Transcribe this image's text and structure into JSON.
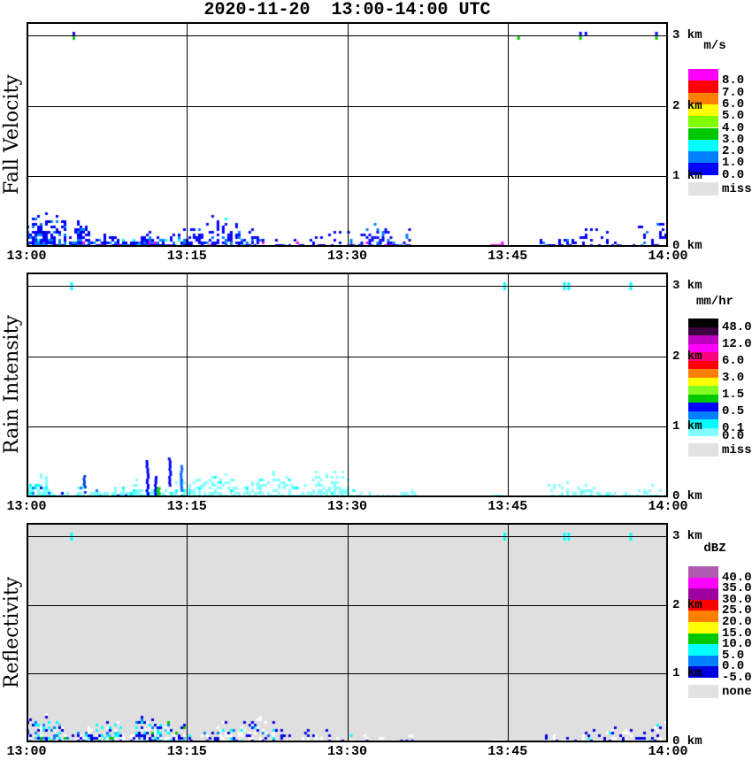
{
  "title": "2020-11-20  13:00-14:00 UTC",
  "axes": {
    "x_ticks": [
      "13:00",
      "13:15",
      "13:30",
      "13:45",
      "14:00"
    ],
    "y_ticks": [
      "3 km",
      "2 km",
      "1 km",
      "0 km"
    ]
  },
  "chart_data": [
    {
      "type": "heatmap",
      "ylabel": "Fall Velocity",
      "unit": "m/s",
      "background": "#FFFFFF",
      "time_axis": {
        "start": "13:00",
        "end": "14:00",
        "ticks": [
          "13:00",
          "13:15",
          "13:30",
          "13:45",
          "14:00"
        ]
      },
      "height_axis": {
        "ticks": [
          "3 km",
          "2 km",
          "1 km",
          "0 km"
        ],
        "range_km": [
          0,
          3.2
        ],
        "gridlines_km": [
          1,
          2,
          3
        ]
      },
      "legend": {
        "header": "m/s",
        "blocks": [
          {
            "color": "#FF00FF",
            "label": "8.0"
          },
          {
            "color": "#FF0000",
            "label": "7.0"
          },
          {
            "color": "#FF8000",
            "label": "6.0"
          },
          {
            "color": "#FFFF00",
            "label": "5.0"
          },
          {
            "color": "#80FF00",
            "label": "4.0"
          },
          {
            "color": "#00C800",
            "label": "3.0"
          },
          {
            "color": "#00FFFF",
            "label": "2.0"
          },
          {
            "color": "#0080FF",
            "label": "1.0"
          },
          {
            "color": "#0000FF",
            "label": "0.0"
          }
        ],
        "no_data": {
          "color": "#E2E2E2",
          "label": "miss"
        }
      },
      "echo_regions": [
        {
          "t": [
            0,
            15.3
          ],
          "h_top": 0.7,
          "density": 0.8,
          "colors": [
            [
              "#0000FF",
              0.58
            ],
            [
              "#0080FF",
              0.3
            ],
            [
              "#00FFFF",
              0.05
            ],
            [
              "#FF00FF",
              0.04
            ],
            [
              "#000090",
              0.03
            ]
          ]
        },
        {
          "t": [
            15.3,
            23.0
          ],
          "h_top": 0.45,
          "density": 0.6,
          "colors": [
            [
              "#0000FF",
              0.74
            ],
            [
              "#0080FF",
              0.18
            ],
            [
              "#FF00FF",
              0.05
            ],
            [
              "#00FFFF",
              0.03
            ]
          ]
        },
        {
          "t": [
            23.0,
            29.5
          ],
          "h_top": 0.28,
          "density": 0.3,
          "colors": [
            [
              "#0000FF",
              0.82
            ],
            [
              "#0080FF",
              0.13
            ],
            [
              "#FF00FF",
              0.05
            ]
          ]
        },
        {
          "t": [
            30.0,
            35.8
          ],
          "h_top": 0.5,
          "density": 0.52,
          "colors": [
            [
              "#0000FF",
              0.68
            ],
            [
              "#0080FF",
              0.22
            ],
            [
              "#FF00FF",
              0.1
            ]
          ]
        },
        {
          "t": [
            43.4,
            44.6
          ],
          "h_top": 0.06,
          "density": 0.95,
          "colors": [
            [
              "#FF00FF",
              1.0
            ]
          ]
        },
        {
          "t": [
            48.0,
            60.0
          ],
          "h_top": 0.48,
          "density": 0.36,
          "colors": [
            [
              "#0000FF",
              0.76
            ],
            [
              "#0080FF",
              0.14
            ],
            [
              "#FF00FF",
              0.1
            ]
          ]
        }
      ],
      "surface_only_colors": [
        "#FF00FF"
      ],
      "streaks": [],
      "ceiling_specks": [
        {
          "t": 4.3,
          "above": "#0000FF",
          "below": "#00C800"
        },
        {
          "t": 45.9,
          "below": "#00C800"
        },
        {
          "t": 51.7,
          "above": "#0000FF",
          "below": "#00C800"
        },
        {
          "t": 52.2,
          "above": "#0000FF"
        },
        {
          "t": 58.8,
          "above": "#0000FF",
          "below": "#00C800"
        }
      ]
    },
    {
      "type": "heatmap",
      "ylabel": "Rain Intensity",
      "unit": "mm/hr",
      "background": "#FFFFFF",
      "time_axis": {
        "start": "13:00",
        "end": "14:00",
        "ticks": [
          "13:00",
          "13:15",
          "13:30",
          "13:45",
          "14:00"
        ]
      },
      "height_axis": {
        "ticks": [
          "3 km",
          "2 km",
          "1 km",
          "0 km"
        ],
        "range_km": [
          0,
          3.2
        ],
        "gridlines_km": [
          1,
          2,
          3
        ]
      },
      "legend": {
        "header": "mm/hr",
        "blocks": [
          {
            "color": "#000000",
            "label": "48.0"
          },
          {
            "color": "#3A0040",
            "label": ""
          },
          {
            "color": "#C000C0",
            "label": "12.0"
          },
          {
            "color": "#FF00FF",
            "label": ""
          },
          {
            "color": "#FF0080",
            "label": "6.0"
          },
          {
            "color": "#FF0000",
            "label": ""
          },
          {
            "color": "#FF8000",
            "label": "3.0"
          },
          {
            "color": "#FFFF00",
            "label": ""
          },
          {
            "color": "#80FF20",
            "label": "1.5"
          },
          {
            "color": "#00C800",
            "label": ""
          },
          {
            "color": "#0000FF",
            "label": "0.5"
          },
          {
            "color": "#0080FF",
            "label": ""
          },
          {
            "color": "#00FFFF",
            "label": "0.1"
          },
          {
            "color": "#80FFFF",
            "label": "0.0"
          }
        ],
        "no_data": {
          "color": "#E2E2E2",
          "label": "miss"
        }
      },
      "echo_regions": [
        {
          "t": [
            0,
            15.3
          ],
          "h_top": 0.58,
          "density": 0.88,
          "colors": [
            [
              "#80FFFF",
              0.77
            ],
            [
              "#00FFFF",
              0.18
            ],
            [
              "#0080FF",
              0.03
            ],
            [
              "#0000FF",
              0.02
            ]
          ]
        },
        {
          "t": [
            15.3,
            30.0
          ],
          "h_top": 0.35,
          "density": 0.55,
          "colors": [
            [
              "#80FFFF",
              0.93
            ],
            [
              "#00FFFF",
              0.07
            ]
          ]
        },
        {
          "t": [
            30.0,
            36.5
          ],
          "h_top": 0.28,
          "density": 0.4,
          "colors": [
            [
              "#80FFFF",
              0.97
            ],
            [
              "#00FFFF",
              0.03
            ]
          ]
        },
        {
          "t": [
            43.6,
            44.4
          ],
          "h_top": 0.05,
          "density": 0.9,
          "colors": [
            [
              "#80FFFF",
              1.0
            ]
          ]
        },
        {
          "t": [
            48.5,
            60.0
          ],
          "h_top": 0.35,
          "density": 0.5,
          "colors": [
            [
              "#80FFFF",
              0.95
            ],
            [
              "#00FFFF",
              0.05
            ]
          ]
        }
      ],
      "surface_only_colors": [],
      "streaks": [
        {
          "t": 5.3,
          "h": [
            0.05,
            0.3
          ],
          "color": "#0040E0",
          "width": 3
        },
        {
          "t": 11.2,
          "h": [
            0.0,
            0.52
          ],
          "color": "#0000FF",
          "width": 3
        },
        {
          "t": 12.0,
          "h": [
            0.0,
            0.3
          ],
          "color": "#0000FF",
          "width": 3
        },
        {
          "t": 12.2,
          "h": [
            0.03,
            0.13
          ],
          "color": "#00C800",
          "width": 4
        },
        {
          "t": 13.3,
          "h": [
            0.15,
            0.55
          ],
          "color": "#0000FF",
          "width": 3
        },
        {
          "t": 14.4,
          "h": [
            0.08,
            0.42
          ],
          "color": "#0060FF",
          "width": 3
        }
      ],
      "ceiling_specks": [
        {
          "t": 4.1,
          "above": "#00FFFF",
          "below": "#00FFFF"
        },
        {
          "t": 44.6,
          "above": "#00FFFF",
          "below": "#00FFFF"
        },
        {
          "t": 50.2,
          "above": "#00FFFF",
          "below": "#00FFFF"
        },
        {
          "t": 50.6,
          "above": "#00FFFF",
          "below": "#00FFFF"
        },
        {
          "t": 56.4,
          "above": "#00FFFF",
          "below": "#00FFFF"
        }
      ]
    },
    {
      "type": "heatmap",
      "ylabel": "Reflectivity",
      "unit": "dBZ",
      "background": "#DFDFDF",
      "time_axis": {
        "start": "13:00",
        "end": "14:00",
        "ticks": [
          "13:00",
          "13:15",
          "13:30",
          "13:45",
          "14:00"
        ]
      },
      "height_axis": {
        "ticks": [
          "3 km",
          "2 km",
          "1 km",
          "0 km"
        ],
        "range_km": [
          0,
          3.2
        ],
        "gridlines_km": [
          1,
          2,
          3
        ]
      },
      "legend": {
        "header": "dBZ",
        "blocks": [
          {
            "color": "#B05AB0",
            "label": "40.0"
          },
          {
            "color": "#FF00FF",
            "label": "35.0"
          },
          {
            "color": "#A000A0",
            "label": "30.0"
          },
          {
            "color": "#FF0000",
            "label": "25.0"
          },
          {
            "color": "#FF8000",
            "label": "20.0"
          },
          {
            "color": "#FFFF00",
            "label": "15.0"
          },
          {
            "color": "#00C800",
            "label": "10.0"
          },
          {
            "color": "#00FFFF",
            "label": "5.0"
          },
          {
            "color": "#0080FF",
            "label": "0.0"
          },
          {
            "color": "#0000E0",
            "label": "-5.0"
          }
        ],
        "no_data": {
          "color": "#E2E2E2",
          "label": "none"
        }
      },
      "echo_regions": [
        {
          "t": [
            0,
            15.3
          ],
          "h_top": 0.6,
          "density": 0.65,
          "colors": [
            [
              "#FFFFFF",
              0.36
            ],
            [
              "#0000E8",
              0.27
            ],
            [
              "#0080FF",
              0.13
            ],
            [
              "#00FFFF",
              0.15
            ],
            [
              "#40C8FF",
              0.05
            ],
            [
              "#00C800",
              0.04
            ]
          ]
        },
        {
          "t": [
            15.3,
            23.0
          ],
          "h_top": 0.36,
          "density": 0.5,
          "colors": [
            [
              "#FFFFFF",
              0.45
            ],
            [
              "#0000E8",
              0.37
            ],
            [
              "#0080FF",
              0.09
            ],
            [
              "#00FFFF",
              0.09
            ]
          ]
        },
        {
          "t": [
            23.0,
            30.0
          ],
          "h_top": 0.24,
          "density": 0.28,
          "colors": [
            [
              "#FFFFFF",
              0.55
            ],
            [
              "#0000E8",
              0.4
            ],
            [
              "#00FFFF",
              0.05
            ]
          ]
        },
        {
          "t": [
            30.0,
            36.3
          ],
          "h_top": 0.28,
          "density": 0.33,
          "colors": [
            [
              "#FFFFFF",
              0.5
            ],
            [
              "#0000E8",
              0.4
            ],
            [
              "#00FFFF",
              0.1
            ]
          ]
        },
        {
          "t": [
            43.5,
            44.5
          ],
          "h_top": 0.05,
          "density": 0.8,
          "colors": [
            [
              "#FFFFFF",
              1.0
            ]
          ]
        },
        {
          "t": [
            48.0,
            60.0
          ],
          "h_top": 0.32,
          "density": 0.36,
          "colors": [
            [
              "#FFFFFF",
              0.5
            ],
            [
              "#0000E8",
              0.4
            ],
            [
              "#00FFFF",
              0.1
            ]
          ]
        }
      ],
      "surface_only_colors": [],
      "streaks": [],
      "ceiling_specks": [
        {
          "t": 4.1,
          "above": "#00FFFF",
          "below": "#00FFFF"
        },
        {
          "t": 44.6,
          "above": "#00FFFF",
          "below": "#00FFFF"
        },
        {
          "t": 50.2,
          "above": "#00FFFF",
          "below": "#00FFFF"
        },
        {
          "t": 50.6,
          "above": "#00FFFF",
          "below": "#00FFFF"
        },
        {
          "t": 56.4,
          "above": "#00FFFF",
          "below": "#00FFFF"
        }
      ]
    }
  ]
}
